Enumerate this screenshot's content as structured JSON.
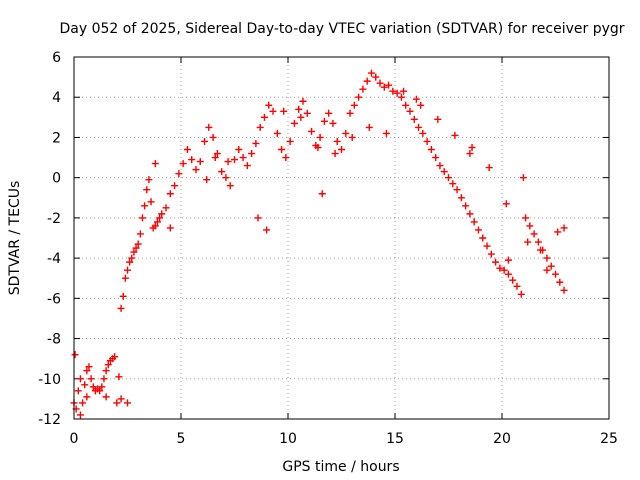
{
  "chart_data": {
    "type": "scatter",
    "title": "Day 052 of 2025, Sidereal Day-to-day VTEC variation (SDTVAR) for receiver pygr",
    "xlabel": "GPS time / hours",
    "ylabel": "SDTVAR / TECUs",
    "xlim": [
      0,
      25
    ],
    "ylim": [
      -12,
      6
    ],
    "xticks": [
      "0",
      "5",
      "10",
      "15",
      "20",
      "25"
    ],
    "yticks": [
      "-12",
      "-10",
      "-8",
      "-6",
      "-4",
      "-2",
      "0",
      "2",
      "4",
      "6"
    ],
    "marker": "+",
    "grid": true,
    "color": "#ff0000",
    "series": [
      {
        "name": "SDTVAR",
        "x": [
          0.0,
          0.1,
          0.2,
          0.3,
          0.4,
          0.5,
          0.6,
          0.7,
          0.8,
          0.9,
          1.0,
          1.1,
          1.2,
          1.3,
          1.4,
          1.5,
          1.6,
          1.7,
          1.8,
          1.9,
          2.0,
          2.1,
          2.2,
          2.3,
          2.4,
          2.5,
          2.6,
          2.7,
          2.8,
          2.9,
          3.0,
          3.1,
          3.2,
          3.3,
          3.4,
          3.5,
          3.6,
          3.7,
          3.8,
          3.9,
          4.0,
          4.1,
          4.3,
          4.5,
          4.7,
          4.9,
          5.1,
          5.3,
          5.5,
          5.7,
          5.9,
          6.1,
          6.3,
          6.5,
          6.7,
          6.9,
          7.1,
          7.3,
          7.5,
          7.7,
          7.9,
          8.1,
          8.3,
          8.5,
          8.7,
          8.9,
          9.1,
          9.3,
          9.5,
          9.7,
          9.9,
          10.1,
          10.3,
          10.5,
          10.7,
          10.9,
          11.1,
          11.3,
          11.5,
          11.7,
          11.9,
          12.1,
          12.3,
          12.5,
          12.7,
          12.9,
          13.1,
          13.3,
          13.5,
          13.7,
          13.9,
          14.1,
          14.3,
          14.5,
          14.7,
          14.9,
          15.1,
          15.3,
          15.5,
          15.7,
          15.9,
          16.1,
          16.3,
          16.5,
          16.7,
          16.9,
          17.1,
          17.3,
          17.5,
          17.7,
          17.9,
          18.1,
          18.3,
          18.5,
          18.7,
          18.9,
          19.1,
          19.3,
          19.5,
          19.7,
          19.9,
          20.1,
          20.3,
          20.5,
          20.7,
          20.9,
          21.1,
          21.3,
          21.5,
          21.7,
          21.9,
          22.1,
          22.3,
          22.5,
          22.7,
          22.9,
          0.05,
          0.3,
          0.6,
          1.5,
          2.2,
          2.5,
          3.8,
          4.5,
          6.2,
          6.6,
          7.2,
          8.6,
          9.0,
          9.8,
          10.6,
          11.4,
          12.2,
          13.0,
          13.8,
          14.6,
          15.4,
          16.2,
          17.0,
          17.8,
          18.6,
          19.4,
          20.2,
          21.0,
          21.8,
          22.6,
          22.9,
          20.3,
          21.2,
          22.1,
          16.0,
          18.5,
          11.6
        ],
        "y": [
          -11.2,
          -11.5,
          -10.6,
          -10.0,
          -11.2,
          -10.3,
          -9.6,
          -9.4,
          -10.0,
          -10.4,
          -10.6,
          -10.5,
          -10.6,
          -10.4,
          -10.0,
          -9.6,
          -9.3,
          -9.1,
          -9.0,
          -8.9,
          -11.2,
          -9.9,
          -6.5,
          -5.9,
          -5.0,
          -4.6,
          -4.2,
          -4.0,
          -3.7,
          -3.5,
          -3.3,
          -2.8,
          -2.0,
          -1.4,
          -0.6,
          -0.1,
          -1.2,
          -2.5,
          -2.4,
          -2.2,
          -2.0,
          -1.8,
          -1.5,
          -0.8,
          -0.4,
          0.2,
          0.7,
          1.4,
          0.9,
          0.4,
          0.8,
          1.8,
          2.5,
          2.0,
          1.2,
          0.3,
          0.0,
          -0.4,
          0.9,
          1.4,
          1.0,
          0.6,
          1.2,
          1.7,
          2.5,
          3.0,
          3.6,
          3.3,
          2.2,
          1.4,
          1.0,
          1.8,
          2.7,
          3.4,
          3.8,
          3.2,
          2.3,
          1.6,
          2.0,
          2.8,
          3.2,
          2.7,
          1.8,
          1.4,
          2.2,
          3.2,
          3.6,
          4.0,
          4.4,
          4.8,
          5.2,
          5.0,
          4.7,
          4.5,
          4.6,
          4.3,
          4.2,
          4.0,
          3.6,
          3.3,
          2.9,
          2.5,
          2.2,
          1.8,
          1.4,
          1.0,
          0.6,
          0.3,
          0.0,
          -0.3,
          -0.6,
          -1.0,
          -1.4,
          -1.8,
          -2.2,
          -2.6,
          -3.0,
          -3.4,
          -3.8,
          -4.2,
          -4.5,
          -4.6,
          -4.8,
          -5.1,
          -5.4,
          -5.8,
          -2.0,
          -2.4,
          -2.8,
          -3.2,
          -3.6,
          -4.0,
          -4.4,
          -4.8,
          -5.2,
          -5.6,
          -8.8,
          -11.8,
          -10.9,
          -10.9,
          -11.0,
          -11.2,
          0.7,
          -2.5,
          -0.1,
          1.0,
          0.8,
          -2.0,
          -2.6,
          3.3,
          3.0,
          1.5,
          1.2,
          2.0,
          2.5,
          2.2,
          4.3,
          3.6,
          2.9,
          2.1,
          1.5,
          0.5,
          -1.3,
          0.0,
          -3.6,
          -2.7,
          -2.5,
          -4.1,
          -3.2,
          -4.6,
          3.9,
          1.2,
          -0.8
        ]
      }
    ]
  }
}
